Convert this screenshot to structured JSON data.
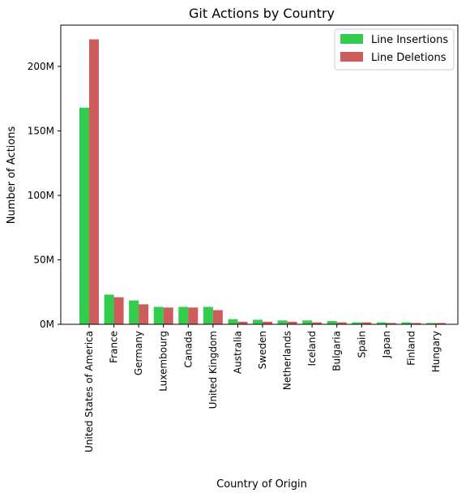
{
  "chart_data": {
    "type": "bar",
    "title": "Git Actions by Country",
    "xlabel": "Country of Origin",
    "ylabel": "Number of Actions",
    "categories": [
      "United States of America",
      "France",
      "Germany",
      "Luxembourg",
      "Canada",
      "United Kingdom",
      "Australia",
      "Sweden",
      "Netherlands",
      "Iceland",
      "Bulgaria",
      "Spain",
      "Japan",
      "Finland",
      "Hungary"
    ],
    "series": [
      {
        "name": "Line Insertions",
        "color": "#33cc4d",
        "values": [
          168000000,
          23000000,
          18500000,
          13500000,
          13500000,
          13500000,
          4000000,
          3500000,
          3000000,
          3000000,
          2500000,
          1500000,
          1500000,
          1500000,
          1000000
        ]
      },
      {
        "name": "Line Deletions",
        "color": "#cd5c5c",
        "values": [
          221000000,
          21000000,
          15500000,
          13000000,
          13000000,
          11000000,
          2000000,
          2000000,
          2000000,
          1500000,
          1500000,
          1500000,
          1000000,
          1000000,
          1000000
        ]
      }
    ],
    "ylim": [
      0,
      232000000
    ],
    "yticks": [
      0,
      50000000,
      100000000,
      150000000,
      200000000
    ],
    "ytick_labels": [
      "0M",
      "50M",
      "100M",
      "150M",
      "200M"
    ],
    "legend_position": "top-right",
    "grid": false
  }
}
